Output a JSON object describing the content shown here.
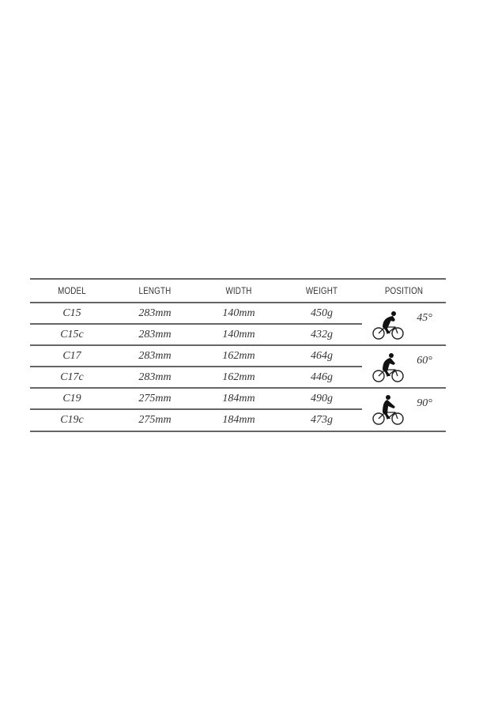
{
  "table": {
    "headers": [
      "MODEL",
      "LENGTH",
      "WIDTH",
      "WEIGHT",
      "POSITION"
    ],
    "rows": [
      {
        "model": "C15",
        "length": "283mm",
        "width": "140mm",
        "weight": "450g"
      },
      {
        "model": "C15c",
        "length": "283mm",
        "width": "140mm",
        "weight": "432g"
      },
      {
        "model": "C17",
        "length": "283mm",
        "width": "162mm",
        "weight": "464g"
      },
      {
        "model": "C17c",
        "length": "283mm",
        "width": "162mm",
        "weight": "446g"
      },
      {
        "model": "C19",
        "length": "275mm",
        "width": "184mm",
        "weight": "490g"
      },
      {
        "model": "C19c",
        "length": "275mm",
        "width": "184mm",
        "weight": "473g"
      }
    ],
    "positions": [
      {
        "angle": "45°",
        "icon": "cyclist-icon"
      },
      {
        "angle": "60°",
        "icon": "cyclist-icon"
      },
      {
        "angle": "90°",
        "icon": "cyclist-icon"
      }
    ]
  }
}
